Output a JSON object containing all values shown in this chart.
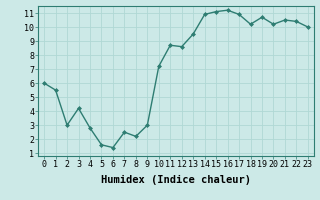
{
  "x": [
    0,
    1,
    2,
    3,
    4,
    5,
    6,
    7,
    8,
    9,
    10,
    11,
    12,
    13,
    14,
    15,
    16,
    17,
    18,
    19,
    20,
    21,
    22,
    23
  ],
  "y": [
    6.0,
    5.5,
    3.0,
    4.2,
    2.8,
    1.6,
    1.4,
    2.5,
    2.2,
    3.0,
    7.2,
    8.7,
    8.6,
    9.5,
    10.9,
    11.1,
    11.2,
    10.9,
    10.2,
    10.7,
    10.2,
    10.5,
    10.4,
    10.0
  ],
  "line_color": "#2e7d72",
  "marker": "D",
  "marker_size": 2.0,
  "bg_color": "#cce9e7",
  "grid_color": "#b0d8d5",
  "xlabel": "Humidex (Indice chaleur)",
  "xlim": [
    -0.5,
    23.5
  ],
  "ylim": [
    0.8,
    11.5
  ],
  "yticks": [
    1,
    2,
    3,
    4,
    5,
    6,
    7,
    8,
    9,
    10,
    11
  ],
  "xticks": [
    0,
    1,
    2,
    3,
    4,
    5,
    6,
    7,
    8,
    9,
    10,
    11,
    12,
    13,
    14,
    15,
    16,
    17,
    18,
    19,
    20,
    21,
    22,
    23
  ],
  "xlabel_fontsize": 7.5,
  "tick_fontsize": 6.0,
  "line_width": 1.0,
  "spine_color": "#2e7d72"
}
